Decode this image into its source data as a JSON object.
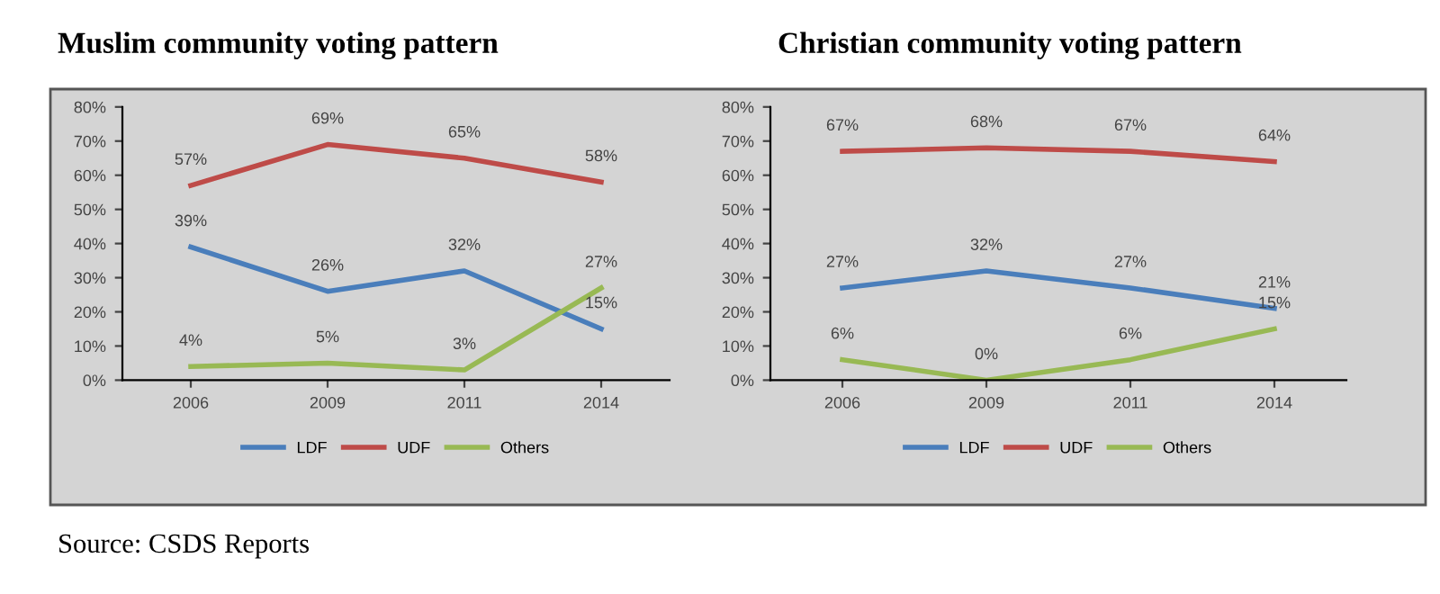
{
  "chart_data": [
    {
      "type": "line",
      "title": "Muslim community voting pattern",
      "categories": [
        "2006",
        "2009",
        "2011",
        "2014"
      ],
      "series": [
        {
          "name": "LDF",
          "color": "#4a7ebb",
          "values": [
            39,
            26,
            32,
            15
          ],
          "value_labels": [
            "39%",
            "26%",
            "32%",
            "15%"
          ]
        },
        {
          "name": "UDF",
          "color": "#be4b48",
          "values": [
            57,
            69,
            65,
            58
          ],
          "value_labels": [
            "57%",
            "69%",
            "65%",
            "58%"
          ]
        },
        {
          "name": "Others",
          "color": "#98b954",
          "values": [
            4,
            5,
            3,
            27
          ],
          "value_labels": [
            "4%",
            "5%",
            "3%",
            "27%"
          ]
        }
      ],
      "ylim": [
        0,
        80
      ],
      "yticks": [
        {
          "value": 0,
          "label": "0%"
        },
        {
          "value": 10,
          "label": "10%"
        },
        {
          "value": 20,
          "label": "20%"
        },
        {
          "value": 30,
          "label": "30%"
        },
        {
          "value": 40,
          "label": "40%"
        },
        {
          "value": 50,
          "label": "50%"
        },
        {
          "value": 60,
          "label": "60%"
        },
        {
          "value": 70,
          "label": "70%"
        },
        {
          "value": 80,
          "label": "80%"
        }
      ],
      "legend": "bottom",
      "marker": "none",
      "line_style": "solid",
      "grid": false,
      "annotations": [
        "Source: CSDS Reports"
      ]
    },
    {
      "type": "line",
      "title": "Christian community voting pattern",
      "categories": [
        "2006",
        "2009",
        "2011",
        "2014"
      ],
      "series": [
        {
          "name": "LDF",
          "color": "#4a7ebb",
          "values": [
            27,
            32,
            27,
            21
          ],
          "value_labels": [
            "27%",
            "32%",
            "27%",
            "21%"
          ]
        },
        {
          "name": "UDF",
          "color": "#be4b48",
          "values": [
            67,
            68,
            67,
            64
          ],
          "value_labels": [
            "67%",
            "68%",
            "67%",
            "64%"
          ]
        },
        {
          "name": "Others",
          "color": "#98b954",
          "values": [
            6,
            0,
            6,
            15
          ],
          "value_labels": [
            "6%",
            "0%",
            "6%",
            "15%"
          ]
        }
      ],
      "ylim": [
        0,
        80
      ],
      "yticks": [
        {
          "value": 0,
          "label": "0%"
        },
        {
          "value": 10,
          "label": "10%"
        },
        {
          "value": 20,
          "label": "20%"
        },
        {
          "value": 30,
          "label": "30%"
        },
        {
          "value": 40,
          "label": "40%"
        },
        {
          "value": 50,
          "label": "50%"
        },
        {
          "value": 60,
          "label": "60%"
        },
        {
          "value": 70,
          "label": "70%"
        },
        {
          "value": 80,
          "label": "80%"
        }
      ],
      "legend": "bottom",
      "marker": "none",
      "line_style": "solid",
      "grid": false
    }
  ]
}
